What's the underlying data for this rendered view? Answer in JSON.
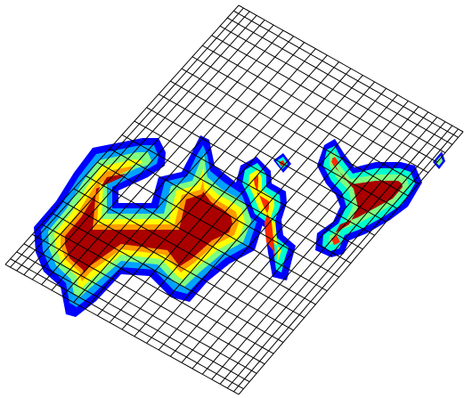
{
  "figure": {
    "kind": "contour plot on distorted quadrilateral mesh",
    "mesh_divisions": {
      "u": 24,
      "v": 24
    },
    "contour_colors": [
      "#0000ff",
      "#00a2ff",
      "#00ffd0",
      "#7fff7f",
      "#ffff00",
      "#ff9b00",
      "#ff2a00",
      "#aa0000"
    ],
    "grid_line_color": "#000000",
    "background": "#ffffff"
  }
}
